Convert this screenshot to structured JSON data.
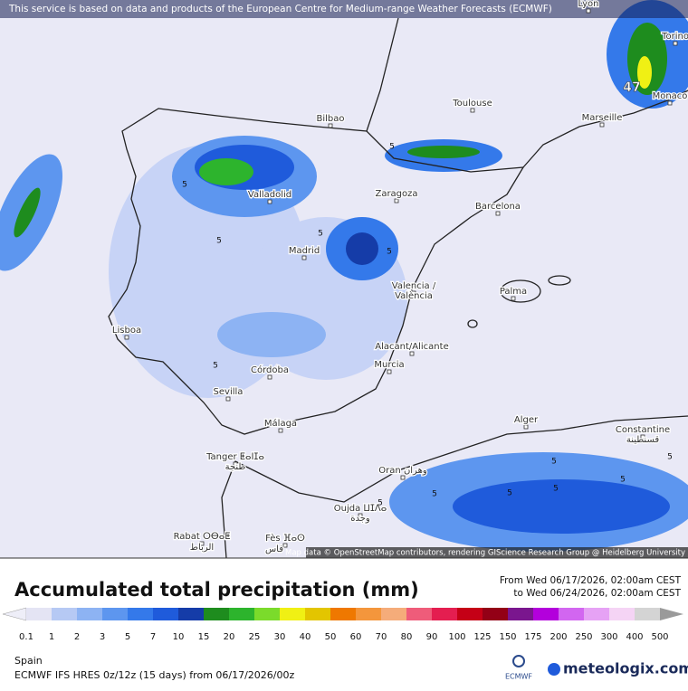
{
  "banner": "This service is based on data and products of the European Centre for Medium-range Weather Forecasts (ECMWF)",
  "cities": [
    "Lyon",
    "Torino",
    "Monaco",
    "Marseille",
    "Toulouse",
    "Bilbao",
    "Valladolid",
    "Zaragoza",
    "Barcelona",
    "Madrid",
    "Valencia /",
    "València",
    "Palma",
    "Lisboa",
    "Alacant/Alicante",
    "Murcia",
    "Córdoba",
    "Sevilla",
    "Málaga",
    "Alger",
    "Constantine",
    "قسنطينة",
    "Tanger ⵟⴰⵏⵊⴰ",
    "طنجة",
    "Oran وهران",
    "Oujda ⵡⵊⴷⴰ",
    "وجدة",
    "Rabat ⵔⴱⴰⵟ",
    "الرباط",
    "Fès ⴼⴰⵙ",
    "فاس"
  ],
  "max_label": "47",
  "contour_labels": [
    "5",
    "5",
    "5",
    "5",
    "5",
    "5",
    "5",
    "5",
    "5",
    "5",
    "5",
    "5",
    "5"
  ],
  "attribution": "Map data © OpenStreetMap contributors, rendering GIScience Research Group @ Heidelberg University",
  "legend": {
    "title": "Accumulated total precipitation (mm)",
    "from": "From Wed 06/17/2026, 02:00am CEST",
    "to": "to Wed 06/24/2026, 02:00am CEST",
    "levels": [
      0.1,
      1,
      2,
      3,
      5,
      7,
      10,
      15,
      20,
      25,
      30,
      40,
      50,
      60,
      70,
      80,
      90,
      100,
      125,
      150,
      175,
      200,
      250,
      300,
      400,
      500
    ],
    "colors": [
      "#e4e4f4",
      "#b6c9f4",
      "#8db3f3",
      "#5d96ef",
      "#3479ea",
      "#1f5bdb",
      "#153ca8",
      "#1e8c1e",
      "#2db42d",
      "#7bdb2b",
      "#f0f014",
      "#e3c500",
      "#ef7800",
      "#f4963c",
      "#f5ac7a",
      "#ef5c7a",
      "#e41e50",
      "#c50016",
      "#930016",
      "#7a168e",
      "#b300dc",
      "#d266f0",
      "#e6a2f5",
      "#f5d4f5",
      "#d4d4d4"
    ],
    "low_color": "#eeeef8",
    "high_color": "#9a9a9a"
  },
  "footer": {
    "region": "Spain",
    "model": "ECMWF IFS HRES 0z/12z (15 days) from 06/17/2026/00z",
    "logo": "ECMWF",
    "brand": "meteologix.com"
  }
}
